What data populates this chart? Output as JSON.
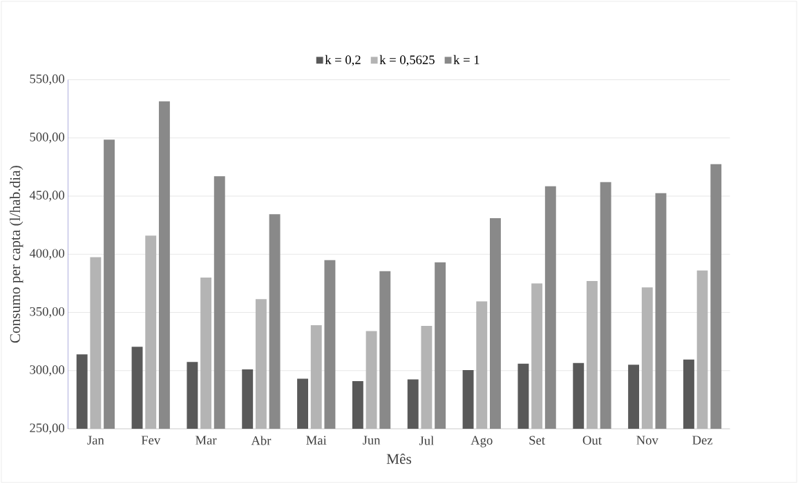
{
  "chart_data": {
    "type": "bar",
    "xlabel": "Mês",
    "ylabel": "Consumo per capta (l/hab.dia)",
    "categories": [
      "Jan",
      "Fev",
      "Mar",
      "Abr",
      "Mai",
      "Jun",
      "Jul",
      "Ago",
      "Set",
      "Out",
      "Nov",
      "Dez"
    ],
    "series": [
      {
        "name": "k = 0,2",
        "color": "#595959",
        "values": [
          314,
          320.5,
          307.5,
          301,
          293,
          291,
          292.5,
          300.5,
          306,
          306.5,
          305,
          309.5
        ]
      },
      {
        "name": "k = 0,5625",
        "color": "#b4b4b4",
        "values": [
          397.5,
          416,
          380,
          361.5,
          339,
          334,
          338.5,
          359.5,
          375,
          377,
          371.5,
          386
        ]
      },
      {
        "name": "k = 1",
        "color": "#898989",
        "values": [
          498.5,
          531.5,
          467,
          434.5,
          395,
          385.5,
          393,
          431,
          458.5,
          462,
          452.5,
          477.5
        ]
      }
    ],
    "ylim": [
      250,
      550
    ],
    "yticks": [
      {
        "value": 250,
        "label": "250,00"
      },
      {
        "value": 300,
        "label": "300,00"
      },
      {
        "value": 350,
        "label": "350,00"
      },
      {
        "value": 400,
        "label": "400,00"
      },
      {
        "value": 450,
        "label": "450,00"
      },
      {
        "value": 500,
        "label": "500,00"
      },
      {
        "value": 550,
        "label": "550,00"
      }
    ],
    "grid": "y",
    "legend": "top"
  }
}
